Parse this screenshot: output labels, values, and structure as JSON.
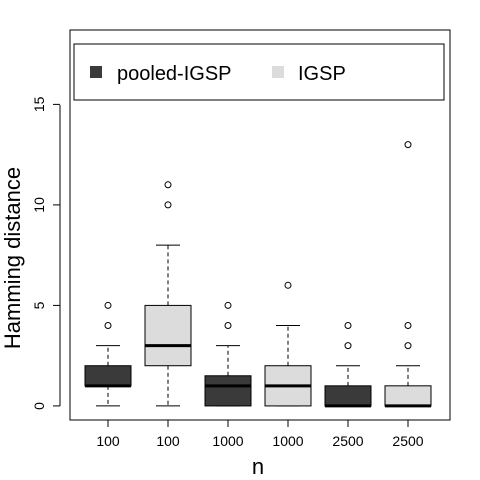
{
  "chart_data": {
    "type": "box",
    "title": "",
    "xlabel": "n",
    "ylabel": "Hamming distance",
    "ylim": [
      -0.7,
      18.7
    ],
    "y_ticks": [
      "0",
      "5",
      "10",
      "15"
    ],
    "y_tick_values": [
      0,
      5,
      10,
      15
    ],
    "legend": {
      "position": "top",
      "entries": [
        {
          "name": "pooled-IGSP",
          "color": "#3a3a3a"
        },
        {
          "name": "IGSP",
          "color": "#dcdcdc"
        }
      ]
    },
    "categories": [
      "100",
      "100",
      "1000",
      "1000",
      "2500",
      "2500"
    ],
    "boxes": [
      {
        "label": "100",
        "series": "pooled-IGSP",
        "whisker_low": 0,
        "q1": 1,
        "median": 1,
        "q3": 2,
        "whisker_high": 3,
        "outliers": [
          4,
          5
        ]
      },
      {
        "label": "100",
        "series": "IGSP",
        "whisker_low": 0,
        "q1": 2,
        "median": 3,
        "q3": 5,
        "whisker_high": 8,
        "outliers": [
          10,
          11
        ]
      },
      {
        "label": "1000",
        "series": "pooled-IGSP",
        "whisker_low": 0,
        "q1": 0,
        "median": 1,
        "q3": 1.5,
        "whisker_high": 3,
        "outliers": [
          4,
          5
        ]
      },
      {
        "label": "1000",
        "series": "IGSP",
        "whisker_low": 0,
        "q1": 0,
        "median": 1,
        "q3": 2,
        "whisker_high": 4,
        "outliers": [
          6
        ]
      },
      {
        "label": "2500",
        "series": "pooled-IGSP",
        "whisker_low": 0,
        "q1": 0,
        "median": 0,
        "q3": 1,
        "whisker_high": 2,
        "outliers": [
          3,
          4
        ]
      },
      {
        "label": "2500",
        "series": "IGSP",
        "whisker_low": 0,
        "q1": 0,
        "median": 0,
        "q3": 1,
        "whisker_high": 2,
        "outliers": [
          3,
          4,
          13
        ]
      }
    ],
    "colors": {
      "pooled-IGSP": "#3a3a3a",
      "IGSP": "#dcdcdc"
    },
    "grid": false
  }
}
